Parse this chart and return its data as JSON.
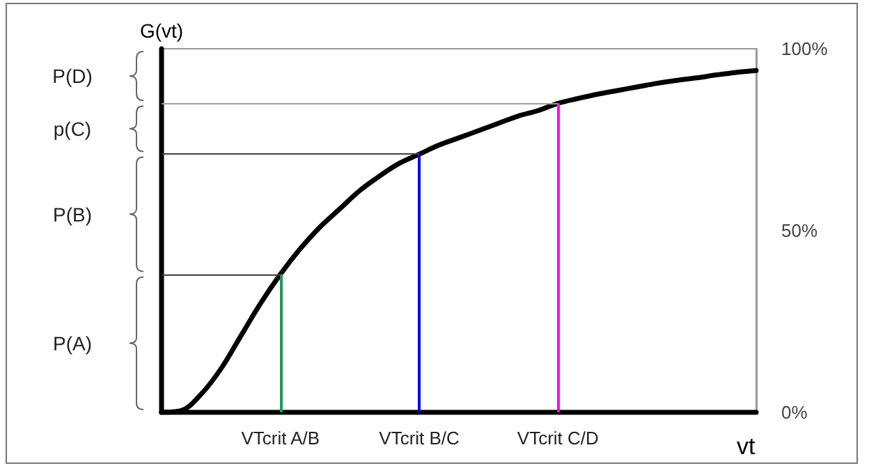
{
  "chart_data": {
    "type": "line",
    "xlabel": "vt",
    "ylabel": "G(vt)",
    "categories": [
      null,
      null,
      null,
      null,
      null,
      null,
      "VTcrit A/B",
      null,
      null,
      null,
      null,
      null,
      null,
      "VTcrit B/C",
      null,
      null,
      null,
      null,
      null,
      null,
      "VTcrit C/D",
      null,
      null,
      null,
      null,
      null,
      null,
      null,
      null,
      null,
      null
    ],
    "series": [
      {
        "color": "#000000",
        "values": [
          0,
          0.5,
          5,
          12,
          21,
          30,
          38,
          45,
          51,
          56,
          61,
          65,
          68.5,
          71,
          73.5,
          75.5,
          77.5,
          79.5,
          81.5,
          83,
          85,
          86.3,
          87.5,
          88.5,
          89.5,
          90.5,
          91.3,
          92,
          92.8,
          93.5,
          94
        ]
      }
    ],
    "ylim": [
      0,
      100
    ],
    "yticks": [
      {
        "value": 0,
        "label": "0%"
      },
      {
        "value": 50,
        "label": "50%"
      },
      {
        "value": 100,
        "label": "100%"
      }
    ],
    "ref_lines": [
      {
        "axis": "x",
        "value": "VTcrit A/B",
        "color": "#1e9a5a"
      },
      {
        "axis": "x",
        "value": "VTcrit B/C",
        "color": "#0000ff"
      },
      {
        "axis": "x",
        "value": "VTcrit C/D",
        "color": "#ff00ff"
      },
      {
        "axis": "y",
        "value": 38,
        "color": "#404040"
      },
      {
        "axis": "y",
        "value": 71,
        "color": "#404040"
      },
      {
        "axis": "y",
        "value": 85,
        "color": "#a0a0a0"
      }
    ],
    "annotations": [
      "P(D)",
      "p(C)",
      "P(B)",
      "P(A)"
    ],
    "grid": false
  }
}
